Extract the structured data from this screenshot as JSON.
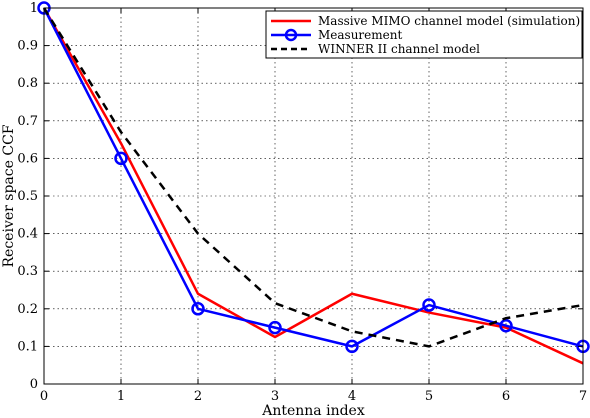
{
  "chart_data": {
    "type": "line",
    "xlabel": "Antenna index",
    "ylabel": "Receiver space CCF",
    "xlim": [
      0,
      7
    ],
    "ylim": [
      0,
      1
    ],
    "x_ticks": [
      "0",
      "1",
      "2",
      "3",
      "4",
      "5",
      "6",
      "7"
    ],
    "y_ticks": [
      "0",
      "0.1",
      "0.2",
      "0.3",
      "0.4",
      "0.5",
      "0.6",
      "0.7",
      "0.8",
      "0.9",
      "1"
    ],
    "grid": true,
    "legend_position": "top-right",
    "series": [
      {
        "name": "Massive MIMO channel model (simulation)",
        "color": "#ff0000",
        "line_style": "solid",
        "marker": "none",
        "x": [
          0,
          1,
          2,
          3,
          4,
          5,
          6,
          7
        ],
        "y": [
          1.0,
          0.64,
          0.24,
          0.125,
          0.24,
          0.19,
          0.15,
          0.055
        ]
      },
      {
        "name": "Measurement",
        "color": "#0000ff",
        "line_style": "solid",
        "marker": "circle",
        "x": [
          0,
          1,
          2,
          3,
          4,
          5,
          6,
          7
        ],
        "y": [
          1.0,
          0.6,
          0.2,
          0.15,
          0.1,
          0.21,
          0.155,
          0.1
        ]
      },
      {
        "name": "WINNER II channel model",
        "color": "#000000",
        "line_style": "dashed",
        "marker": "none",
        "x": [
          0,
          1,
          2,
          3,
          4,
          5,
          6,
          7
        ],
        "y": [
          1.0,
          0.67,
          0.4,
          0.215,
          0.14,
          0.1,
          0.175,
          0.21
        ]
      }
    ]
  }
}
